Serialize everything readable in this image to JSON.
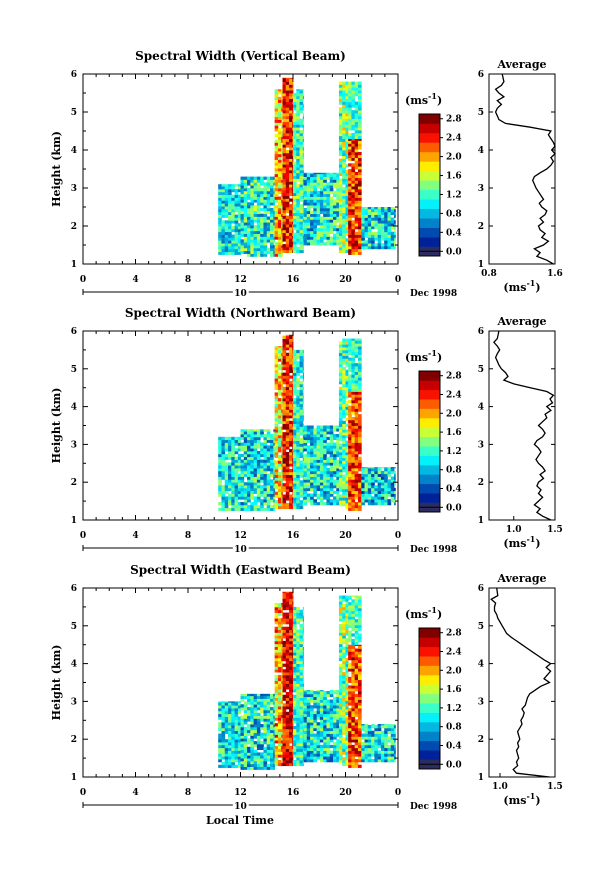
{
  "xlabel": "Local Time",
  "day_label": "10",
  "month_label": "Dec 1998",
  "ylabel": "Height (km)",
  "cb_unit_prefix": "(ms",
  "cb_unit_exp": "-1",
  "cb_unit_suffix": ")",
  "avg_unit_prefix": "(ms",
  "avg_unit_exp": "-1",
  "avg_unit_suffix": ")",
  "x_ticks": [
    "0",
    "4",
    "8",
    "12",
    "16",
    "20",
    "0"
  ],
  "y_ticks": [
    "1",
    "2",
    "3",
    "4",
    "5",
    "6"
  ],
  "chart_data": [
    {
      "type": "heatmap",
      "title": "Spectral Width (Vertical Beam)",
      "xlabel": "Local Time",
      "ylabel": "Height (km)",
      "xlim": [
        0,
        24
      ],
      "ylim": [
        1,
        6
      ],
      "colorbar": {
        "min": 0.0,
        "max": 2.8,
        "step": 0.2,
        "labels": [
          "0.0",
          "0.4",
          "0.8",
          "1.2",
          "1.6",
          "2.0",
          "2.4",
          "2.8"
        ]
      },
      "avg_panel": {
        "title": "Average",
        "xlim": [
          0.8,
          1.6
        ],
        "xticks": [
          "0.8",
          "1.6"
        ],
        "ylim": [
          1,
          6
        ],
        "profile": [
          [
            1.0,
            1.58
          ],
          [
            1.1,
            1.5
          ],
          [
            1.2,
            1.38
          ],
          [
            1.3,
            1.42
          ],
          [
            1.4,
            1.35
          ],
          [
            1.5,
            1.46
          ],
          [
            1.6,
            1.52
          ],
          [
            1.7,
            1.44
          ],
          [
            1.8,
            1.48
          ],
          [
            1.9,
            1.42
          ],
          [
            2.0,
            1.4
          ],
          [
            2.1,
            1.46
          ],
          [
            2.2,
            1.42
          ],
          [
            2.3,
            1.48
          ],
          [
            2.4,
            1.5
          ],
          [
            2.5,
            1.44
          ],
          [
            2.6,
            1.41
          ],
          [
            2.7,
            1.46
          ],
          [
            2.8,
            1.43
          ],
          [
            2.9,
            1.4
          ],
          [
            3.0,
            1.37
          ],
          [
            3.1,
            1.35
          ],
          [
            3.2,
            1.33
          ],
          [
            3.3,
            1.35
          ],
          [
            3.4,
            1.42
          ],
          [
            3.5,
            1.5
          ],
          [
            3.6,
            1.55
          ],
          [
            3.7,
            1.58
          ],
          [
            3.8,
            1.55
          ],
          [
            3.9,
            1.6
          ],
          [
            4.0,
            1.56
          ],
          [
            4.1,
            1.6
          ],
          [
            4.2,
            1.58
          ],
          [
            4.3,
            1.55
          ],
          [
            4.4,
            1.52
          ],
          [
            4.5,
            1.55
          ],
          [
            4.6,
            1.3
          ],
          [
            4.7,
            1.0
          ],
          [
            4.8,
            0.92
          ],
          [
            4.9,
            0.9
          ],
          [
            5.0,
            0.88
          ],
          [
            5.1,
            0.9
          ],
          [
            5.2,
            0.95
          ],
          [
            5.3,
            0.9
          ],
          [
            5.4,
            0.98
          ],
          [
            5.5,
            0.92
          ],
          [
            5.6,
            0.88
          ],
          [
            5.7,
            0.95
          ],
          [
            5.8,
            0.98
          ],
          [
            6.0,
            0.96
          ]
        ]
      },
      "regions": [
        {
          "x": [
            10.3,
            12.0
          ],
          "y": [
            1.25,
            3.1
          ],
          "base": 1.0,
          "var": 0.5
        },
        {
          "x": [
            12.0,
            14.6
          ],
          "y": [
            1.2,
            3.3
          ],
          "base": 1.1,
          "var": 0.6
        },
        {
          "x": [
            14.6,
            15.2
          ],
          "y": [
            1.2,
            5.6
          ],
          "base": 1.9,
          "var": 0.6
        },
        {
          "x": [
            15.2,
            16.0
          ],
          "y": [
            1.3,
            5.9
          ],
          "base": 2.4,
          "var": 0.5
        },
        {
          "x": [
            16.0,
            16.8
          ],
          "y": [
            1.3,
            5.6
          ],
          "base": 1.2,
          "var": 0.5
        },
        {
          "x": [
            16.8,
            19.5
          ],
          "y": [
            1.5,
            3.4
          ],
          "base": 1.0,
          "var": 0.6
        },
        {
          "x": [
            19.5,
            20.2
          ],
          "y": [
            1.3,
            5.8
          ],
          "base": 1.4,
          "var": 0.6
        },
        {
          "x": [
            20.2,
            21.2
          ],
          "y": [
            1.25,
            4.3
          ],
          "base": 2.3,
          "var": 0.5
        },
        {
          "x": [
            20.2,
            21.2
          ],
          "y": [
            4.3,
            5.8
          ],
          "base": 1.2,
          "var": 0.4
        },
        {
          "x": [
            21.2,
            23.8
          ],
          "y": [
            1.4,
            2.5
          ],
          "base": 1.0,
          "var": 0.6
        }
      ]
    },
    {
      "type": "heatmap",
      "title": "Spectral Width (Northward Beam)",
      "xlabel": "Local Time",
      "ylabel": "Height (km)",
      "xlim": [
        0,
        24
      ],
      "ylim": [
        1,
        6
      ],
      "colorbar": {
        "min": 0.0,
        "max": 2.8,
        "step": 0.2,
        "labels": [
          "0.0",
          "0.4",
          "0.8",
          "1.2",
          "1.6",
          "2.0",
          "2.4",
          "2.8"
        ]
      },
      "avg_panel": {
        "title": "Average",
        "xlim": [
          0.7,
          1.5
        ],
        "xticks": [
          "1.0",
          "1.5"
        ],
        "ylim": [
          1,
          6
        ],
        "profile": [
          [
            1.0,
            1.45
          ],
          [
            1.1,
            1.35
          ],
          [
            1.2,
            1.28
          ],
          [
            1.3,
            1.32
          ],
          [
            1.4,
            1.25
          ],
          [
            1.5,
            1.3
          ],
          [
            1.6,
            1.35
          ],
          [
            1.7,
            1.3
          ],
          [
            1.8,
            1.33
          ],
          [
            1.9,
            1.28
          ],
          [
            2.0,
            1.3
          ],
          [
            2.1,
            1.36
          ],
          [
            2.2,
            1.32
          ],
          [
            2.3,
            1.38
          ],
          [
            2.4,
            1.35
          ],
          [
            2.5,
            1.3
          ],
          [
            2.6,
            1.27
          ],
          [
            2.7,
            1.3
          ],
          [
            2.8,
            1.33
          ],
          [
            2.9,
            1.3
          ],
          [
            3.0,
            1.25
          ],
          [
            3.1,
            1.28
          ],
          [
            3.2,
            1.35
          ],
          [
            3.3,
            1.38
          ],
          [
            3.4,
            1.35
          ],
          [
            3.5,
            1.3
          ],
          [
            3.6,
            1.35
          ],
          [
            3.7,
            1.4
          ],
          [
            3.8,
            1.38
          ],
          [
            3.9,
            1.45
          ],
          [
            4.0,
            1.4
          ],
          [
            4.1,
            1.47
          ],
          [
            4.2,
            1.44
          ],
          [
            4.3,
            1.48
          ],
          [
            4.4,
            1.4
          ],
          [
            4.5,
            1.2
          ],
          [
            4.6,
            1.0
          ],
          [
            4.7,
            0.88
          ],
          [
            4.8,
            0.93
          ],
          [
            4.9,
            0.9
          ],
          [
            5.0,
            0.85
          ],
          [
            5.1,
            0.82
          ],
          [
            5.2,
            0.8
          ],
          [
            5.3,
            0.78
          ],
          [
            5.4,
            0.8
          ],
          [
            5.5,
            0.83
          ],
          [
            5.6,
            0.8
          ],
          [
            5.7,
            0.76
          ],
          [
            5.8,
            0.8
          ],
          [
            6.0,
            0.82
          ]
        ]
      },
      "regions": [
        {
          "x": [
            10.3,
            12.0
          ],
          "y": [
            1.25,
            3.2
          ],
          "base": 1.0,
          "var": 0.5
        },
        {
          "x": [
            12.0,
            14.6
          ],
          "y": [
            1.25,
            3.4
          ],
          "base": 1.0,
          "var": 0.6
        },
        {
          "x": [
            14.6,
            15.2
          ],
          "y": [
            1.3,
            5.6
          ],
          "base": 1.8,
          "var": 0.6
        },
        {
          "x": [
            15.2,
            16.0
          ],
          "y": [
            1.3,
            5.9
          ],
          "base": 2.4,
          "var": 0.5
        },
        {
          "x": [
            16.0,
            16.8
          ],
          "y": [
            1.3,
            5.5
          ],
          "base": 1.1,
          "var": 0.5
        },
        {
          "x": [
            16.8,
            19.5
          ],
          "y": [
            1.4,
            3.5
          ],
          "base": 1.0,
          "var": 0.6
        },
        {
          "x": [
            19.5,
            20.2
          ],
          "y": [
            1.3,
            5.8
          ],
          "base": 1.3,
          "var": 0.6
        },
        {
          "x": [
            20.2,
            21.2
          ],
          "y": [
            1.25,
            4.4
          ],
          "base": 2.3,
          "var": 0.5
        },
        {
          "x": [
            20.2,
            21.2
          ],
          "y": [
            4.4,
            5.8
          ],
          "base": 1.1,
          "var": 0.4
        },
        {
          "x": [
            21.2,
            23.8
          ],
          "y": [
            1.4,
            2.4
          ],
          "base": 0.9,
          "var": 0.6
        }
      ]
    },
    {
      "type": "heatmap",
      "title": "Spectral Width (Eastward Beam)",
      "xlabel": "Local Time",
      "ylabel": "Height (km)",
      "xlim": [
        0,
        24
      ],
      "ylim": [
        1,
        6
      ],
      "colorbar": {
        "min": 0.0,
        "max": 2.8,
        "step": 0.2,
        "labels": [
          "0.0",
          "0.4",
          "0.8",
          "1.2",
          "1.6",
          "2.0",
          "2.4",
          "2.8"
        ]
      },
      "avg_panel": {
        "title": "Average",
        "xlim": [
          0.9,
          1.5
        ],
        "xticks": [
          "1.0",
          "1.5"
        ],
        "ylim": [
          1,
          6
        ],
        "profile": [
          [
            1.0,
            1.45
          ],
          [
            1.1,
            1.15
          ],
          [
            1.2,
            1.12
          ],
          [
            1.3,
            1.16
          ],
          [
            1.4,
            1.15
          ],
          [
            1.5,
            1.17
          ],
          [
            1.6,
            1.16
          ],
          [
            1.7,
            1.15
          ],
          [
            1.8,
            1.17
          ],
          [
            1.9,
            1.16
          ],
          [
            2.0,
            1.18
          ],
          [
            2.1,
            1.17
          ],
          [
            2.2,
            1.16
          ],
          [
            2.3,
            1.18
          ],
          [
            2.4,
            1.2
          ],
          [
            2.5,
            1.19
          ],
          [
            2.6,
            1.21
          ],
          [
            2.7,
            1.22
          ],
          [
            2.8,
            1.2
          ],
          [
            2.9,
            1.23
          ],
          [
            3.0,
            1.24
          ],
          [
            3.1,
            1.25
          ],
          [
            3.2,
            1.27
          ],
          [
            3.3,
            1.32
          ],
          [
            3.4,
            1.37
          ],
          [
            3.5,
            1.45
          ],
          [
            3.6,
            1.4
          ],
          [
            3.7,
            1.43
          ],
          [
            3.8,
            1.46
          ],
          [
            3.9,
            1.42
          ],
          [
            4.0,
            1.46
          ],
          [
            4.1,
            1.4
          ],
          [
            4.2,
            1.35
          ],
          [
            4.3,
            1.3
          ],
          [
            4.4,
            1.25
          ],
          [
            4.5,
            1.2
          ],
          [
            4.6,
            1.15
          ],
          [
            4.7,
            1.1
          ],
          [
            4.8,
            1.06
          ],
          [
            4.9,
            1.04
          ],
          [
            5.0,
            1.02
          ],
          [
            5.1,
            1.0
          ],
          [
            5.2,
            0.98
          ],
          [
            5.3,
            0.97
          ],
          [
            5.4,
            0.95
          ],
          [
            5.5,
            0.95
          ],
          [
            5.6,
            0.96
          ],
          [
            5.7,
            0.92
          ],
          [
            5.8,
            0.98
          ],
          [
            6.0,
            0.97
          ]
        ]
      },
      "regions": [
        {
          "x": [
            10.3,
            12.0
          ],
          "y": [
            1.25,
            3.0
          ],
          "base": 1.0,
          "var": 0.5
        },
        {
          "x": [
            12.0,
            14.6
          ],
          "y": [
            1.2,
            3.2
          ],
          "base": 1.0,
          "var": 0.6
        },
        {
          "x": [
            14.6,
            15.2
          ],
          "y": [
            1.3,
            5.6
          ],
          "base": 1.9,
          "var": 0.6
        },
        {
          "x": [
            15.2,
            16.0
          ],
          "y": [
            1.3,
            5.9
          ],
          "base": 2.5,
          "var": 0.4
        },
        {
          "x": [
            16.0,
            16.8
          ],
          "y": [
            1.3,
            5.5
          ],
          "base": 1.2,
          "var": 0.5
        },
        {
          "x": [
            16.8,
            19.5
          ],
          "y": [
            1.4,
            3.3
          ],
          "base": 1.0,
          "var": 0.6
        },
        {
          "x": [
            19.5,
            20.2
          ],
          "y": [
            1.3,
            5.8
          ],
          "base": 1.4,
          "var": 0.6
        },
        {
          "x": [
            20.2,
            21.2
          ],
          "y": [
            1.25,
            4.5
          ],
          "base": 2.3,
          "var": 0.5
        },
        {
          "x": [
            20.2,
            21.2
          ],
          "y": [
            4.5,
            5.8
          ],
          "base": 1.2,
          "var": 0.4
        },
        {
          "x": [
            21.2,
            23.8
          ],
          "y": [
            1.4,
            2.4
          ],
          "base": 1.0,
          "var": 0.6
        }
      ]
    }
  ]
}
